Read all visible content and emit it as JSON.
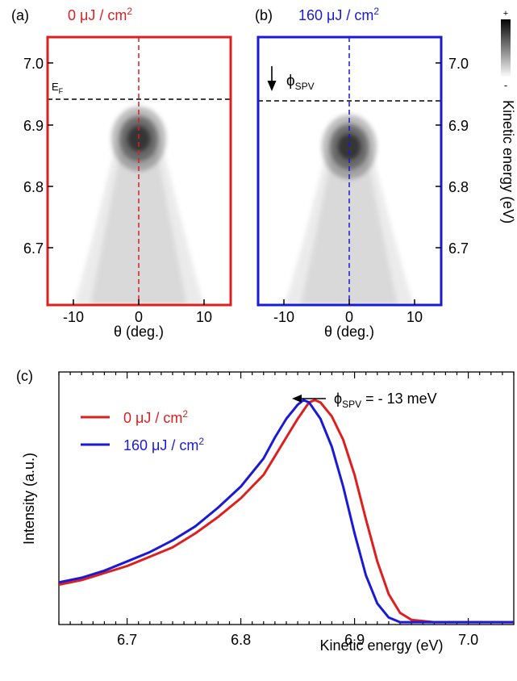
{
  "colors": {
    "red": "#dd1f1f",
    "blue": "#1a1ad6",
    "black": "#000000"
  },
  "panels": {
    "a": {
      "letter": "(a)",
      "fluence_value": "0 μJ / cm",
      "fluence_sup": "2",
      "fermi_label_main": "E",
      "fermi_label_sub": "F",
      "x_ticks": [
        "-10",
        "0",
        "10"
      ],
      "y_ticks": [
        "7.0",
        "6.9",
        "6.8",
        "6.7"
      ],
      "x_label": "θ (deg.)"
    },
    "b": {
      "letter": "(b)",
      "fluence_value": "160 μJ / cm",
      "fluence_sup": "2",
      "spv_label_main": "ϕ",
      "spv_label_sub": "SPV",
      "x_ticks": [
        "-10",
        "0",
        "10"
      ],
      "y_ticks": [
        "7.0",
        "6.9",
        "6.8",
        "6.7"
      ],
      "x_label": "θ (deg.)"
    },
    "colorbar": {
      "plus": "+",
      "minus": "-",
      "label": "Kinetic energy (eV)"
    },
    "c": {
      "letter": "(c)",
      "legend": [
        {
          "main": "0 μJ / cm",
          "sup": "2"
        },
        {
          "main": "160 μJ / cm",
          "sup": "2"
        }
      ],
      "annotation_main": "ϕ",
      "annotation_sub": "SPV",
      "annotation_rest": " = - 13 meV",
      "x_ticks": [
        "6.7",
        "6.8",
        "6.9",
        "7.0"
      ],
      "x_label": "Kinetic energy (eV)",
      "y_label": "Intensity (a.u.)"
    }
  },
  "chart_data": [
    {
      "panel": "a",
      "type": "heatmap",
      "x_axis": {
        "label": "θ (deg.)",
        "range": [
          -14,
          14
        ],
        "ticks": [
          -10,
          0,
          10
        ]
      },
      "y_axis": {
        "label": "Kinetic energy (eV)",
        "range": [
          6.64,
          7.04
        ],
        "ticks": [
          6.7,
          6.8,
          6.9,
          7.0
        ]
      },
      "peak": {
        "theta": 0,
        "energy": 6.872
      },
      "fermi_level": 6.94,
      "cut_theta": 0,
      "colorscale": "grayscale, white low to black high"
    },
    {
      "panel": "b",
      "type": "heatmap",
      "x_axis": {
        "label": "θ (deg.)",
        "range": [
          -14,
          14
        ],
        "ticks": [
          -10,
          0,
          10
        ]
      },
      "y_axis": {
        "label": "Kinetic energy (eV)",
        "range": [
          6.64,
          7.04
        ],
        "ticks": [
          6.7,
          6.8,
          6.9,
          7.0
        ]
      },
      "peak": {
        "theta": 0,
        "energy": 6.859
      },
      "fermi_level": 6.94,
      "cut_theta": 0,
      "colorscale": "grayscale, white low to black high"
    },
    {
      "panel": "c",
      "type": "line",
      "x_label": "Kinetic energy (eV)",
      "y_label": "Intensity (a.u.)",
      "xlim": [
        6.64,
        7.04
      ],
      "ylim": [
        0,
        1.08
      ],
      "x_ticks": [
        6.7,
        6.8,
        6.9,
        7.0
      ],
      "legend_position": "top-left",
      "energy_shift_meV": -13,
      "series": [
        {
          "name": "0 μJ / cm2",
          "color": "#dd1f1f",
          "x": [
            6.64,
            6.66,
            6.68,
            6.7,
            6.72,
            6.74,
            6.76,
            6.78,
            6.8,
            6.82,
            6.84,
            6.85,
            6.86,
            6.865,
            6.87,
            6.88,
            6.89,
            6.9,
            6.91,
            6.92,
            6.93,
            6.94,
            6.95,
            6.97,
            7.0,
            7.04
          ],
          "y": [
            0.17,
            0.19,
            0.22,
            0.25,
            0.29,
            0.33,
            0.39,
            0.46,
            0.54,
            0.64,
            0.8,
            0.88,
            0.95,
            0.96,
            0.95,
            0.89,
            0.79,
            0.64,
            0.45,
            0.27,
            0.13,
            0.05,
            0.02,
            0.01,
            0.01,
            0.01
          ]
        },
        {
          "name": "160 μJ / cm2",
          "color": "#1a1ad6",
          "x": [
            6.64,
            6.66,
            6.68,
            6.7,
            6.72,
            6.74,
            6.76,
            6.78,
            6.8,
            6.82,
            6.83,
            6.84,
            6.85,
            6.855,
            6.86,
            6.87,
            6.88,
            6.89,
            6.9,
            6.91,
            6.92,
            6.93,
            6.94,
            6.95,
            6.97,
            7.0,
            7.04
          ],
          "y": [
            0.18,
            0.2,
            0.23,
            0.27,
            0.31,
            0.36,
            0.42,
            0.5,
            0.59,
            0.71,
            0.8,
            0.88,
            0.94,
            0.96,
            0.95,
            0.88,
            0.76,
            0.59,
            0.39,
            0.21,
            0.09,
            0.03,
            0.01,
            0.01,
            0.01,
            0.01,
            0.01
          ]
        }
      ]
    }
  ]
}
